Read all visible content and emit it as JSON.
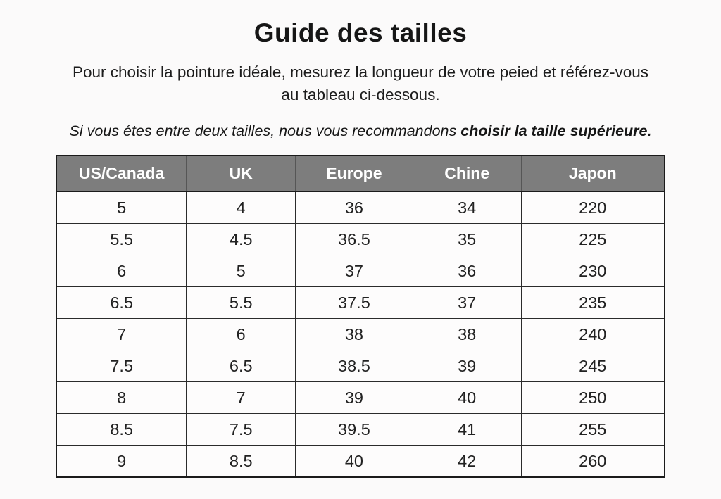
{
  "page": {
    "title": "Guide des tailles",
    "intro": {
      "line1": "Pour choisir la pointure idéale, mesurez la longueur de votre peied et référez-vous",
      "line2": "au tableau ci-dessous."
    },
    "note": {
      "regular": "Si vous étes entre deux tailles, nous vous recommandons ",
      "bold": "choisir la taille supérieure."
    }
  },
  "colors": {
    "page_background": "#fbfafa",
    "header_background": "#7d7d7d",
    "header_text": "#ffffff",
    "table_border": "#1b1b1b",
    "cell_border": "#2b2b2b",
    "body_text": "#1d1d1d"
  },
  "chart_data": {
    "type": "table",
    "columns": [
      "US/Canada",
      "UK",
      "Europe",
      "Chine",
      "Japon"
    ],
    "column_width_percents": [
      21.4,
      17.9,
      19.3,
      17.8,
      23.6
    ],
    "rows": [
      [
        "5",
        "4",
        "36",
        "34",
        "220"
      ],
      [
        "5.5",
        "4.5",
        "36.5",
        "35",
        "225"
      ],
      [
        "6",
        "5",
        "37",
        "36",
        "230"
      ],
      [
        "6.5",
        "5.5",
        "37.5",
        "37",
        "235"
      ],
      [
        "7",
        "6",
        "38",
        "38",
        "240"
      ],
      [
        "7.5",
        "6.5",
        "38.5",
        "39",
        "245"
      ],
      [
        "8",
        "7",
        "39",
        "40",
        "250"
      ],
      [
        "8.5",
        "7.5",
        "39.5",
        "41",
        "255"
      ],
      [
        "9",
        "8.5",
        "40",
        "42",
        "260"
      ]
    ]
  }
}
